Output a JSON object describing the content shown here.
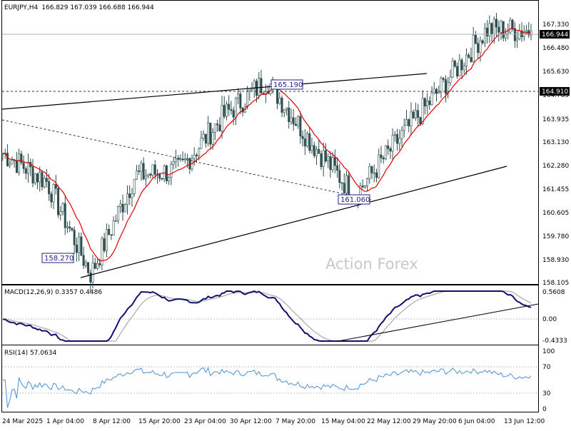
{
  "header": {
    "symbol": "EURJPY,H4",
    "ohlc": "166.829 167.039 166.688 166.944"
  },
  "watermark": "Action Forex",
  "main": {
    "price_labels": [
      "167.330",
      "166.480",
      "165.630",
      "164.785",
      "163.935",
      "163.130",
      "162.280",
      "161.455",
      "160.605",
      "159.780",
      "158.930",
      "158.105"
    ],
    "current_price": "166.944",
    "level_line_price": "164.910",
    "annotations": {
      "high": "165.190",
      "mid_low": "161.060",
      "low": "158.270"
    }
  },
  "macd": {
    "title": "MACD(12,26,9) 0.3357 0.4486",
    "labels": [
      "0.5608",
      "0.00",
      "-0.4333"
    ]
  },
  "rsi": {
    "title": "RSI(14) 57.0634",
    "labels": [
      "100",
      "70",
      "30",
      "0"
    ]
  },
  "x_labels": [
    "24 Mar 2025",
    "1 Apr 04:00",
    "8 Apr 12:00",
    "15 Apr 20:00",
    "23 Apr 04:00",
    "30 Apr 12:00",
    "7 May 20:00",
    "15 May 04:00",
    "22 May 12:00",
    "29 May 20:00",
    "6 Jun 04:00",
    "13 Jun 12:00"
  ],
  "colors": {
    "candles": "#2f4f4f",
    "ma": "#e00000",
    "macd": "#101070",
    "signal": "#999999",
    "rsi": "#4a90d9",
    "trend": "#000000"
  },
  "chart_data": {
    "type": "line",
    "title": "EURJPY,H4",
    "x_ticks": [
      "24 Mar 2025",
      "1 Apr 04:00",
      "8 Apr 12:00",
      "15 Apr 20:00",
      "23 Apr 04:00",
      "30 Apr 12:00",
      "7 May 20:00",
      "15 May 04:00",
      "22 May 12:00",
      "29 May 20:00",
      "6 Jun 04:00",
      "13 Jun 12:00"
    ],
    "price_anchors": [
      {
        "x": "24 Mar 2025",
        "close": 162.6
      },
      {
        "x": "1 Apr 04:00",
        "close": 161.6
      },
      {
        "x": "8 Apr 12:00",
        "close": 158.3
      },
      {
        "x": "15 Apr 20:00",
        "close": 161.8
      },
      {
        "x": "23 Apr 04:00",
        "close": 162.0
      },
      {
        "x": "30 Apr 12:00",
        "close": 163.9
      },
      {
        "x": "7 May 20:00",
        "close": 165.2
      },
      {
        "x": "15 May 04:00",
        "close": 163.0
      },
      {
        "x": "22 May 12:00",
        "close": 161.1
      },
      {
        "x": "29 May 20:00",
        "close": 163.1
      },
      {
        "x": "6 Jun 04:00",
        "close": 165.0
      },
      {
        "x": "13 Jun 12:00",
        "close": 167.0
      }
    ],
    "last_close": 166.944,
    "horizontal_level": 164.91,
    "marked_levels": [
      165.19,
      161.06,
      158.27
    ],
    "y_range": [
      158.105,
      167.33
    ],
    "macd": {
      "macd": 0.3357,
      "signal": 0.4486,
      "range": [
        -0.4333,
        0.5608
      ]
    },
    "rsi": {
      "value": 57.0634,
      "range": [
        0,
        100
      ],
      "levels": [
        70,
        30
      ]
    }
  }
}
